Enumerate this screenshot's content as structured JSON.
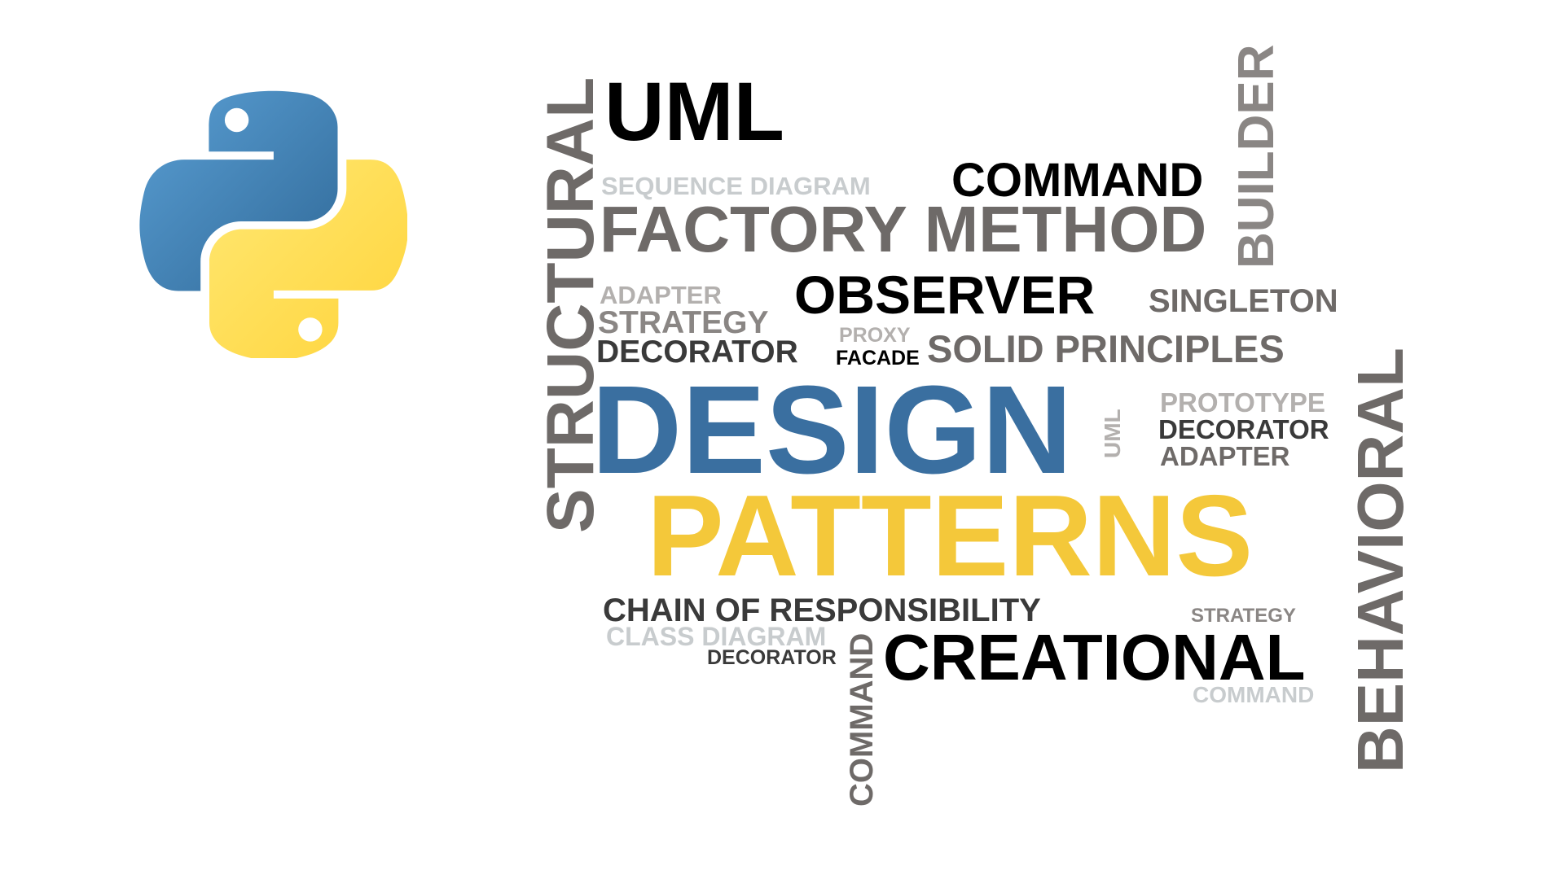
{
  "logo": {
    "name": "python-logo",
    "colors": {
      "blue": "#3776AB",
      "yellow": "#FFD43B"
    }
  },
  "colors": {
    "black": "#000000",
    "dark_gray": "#3a3a3a",
    "gray": "#6e6a68",
    "mid_gray": "#8a8684",
    "light_gray": "#b3b0ae",
    "pale_gray": "#c8ccce",
    "blue": "#3a6fa0",
    "yellow": "#f4c83a"
  },
  "words": {
    "uml_top": "UML",
    "structural": "STRUCTURAL",
    "builder": "BUILDER",
    "command_top": "COMMAND",
    "sequence_diagram": "SEQUENCE DIAGRAM",
    "factory_method": "FACTORY METHOD",
    "adapter_top": "ADAPTER",
    "observer": "OBSERVER",
    "singleton": "SINGLETON",
    "strategy_top": "STRATEGY",
    "proxy": "PROXY",
    "decorator_left": "DECORATOR",
    "facade": "FACADE",
    "solid_principles": "SOLID PRINCIPLES",
    "design": "DESIGN",
    "uml_small": "UML",
    "prototype": "PROTOTYPE",
    "decorator_right": "DECORATOR",
    "adapter_right": "ADAPTER",
    "behavioral": "BEHAVIORAL",
    "patterns": "PATTERNS",
    "chain_of_responsibility": "CHAIN OF RESPONSIBILITY",
    "strategy_bottom": "STRATEGY",
    "class_diagram": "CLASS DIAGRAM",
    "decorator_bottom": "DECORATOR",
    "command_vertical": "COMMAND",
    "creational": "CREATIONAL",
    "command_bottom": "COMMAND"
  }
}
